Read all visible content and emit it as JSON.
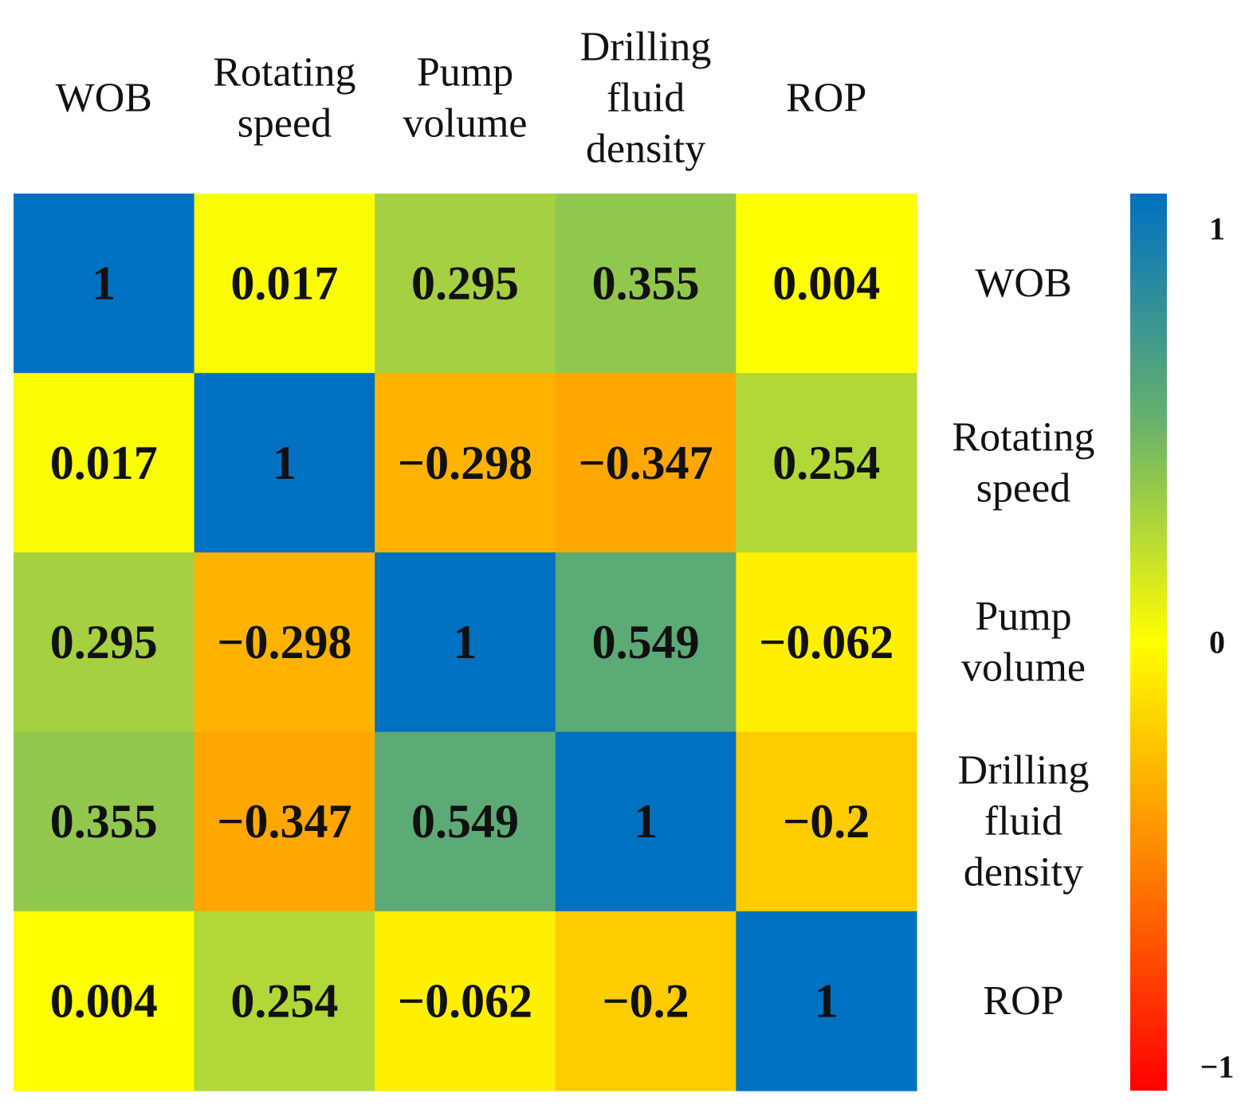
{
  "chart_data": {
    "type": "heatmap",
    "title": "",
    "x_labels": [
      [
        "WOB"
      ],
      [
        "Rotating",
        "speed"
      ],
      [
        "Pump",
        "volume"
      ],
      [
        "Drilling",
        "fluid",
        "density"
      ],
      [
        "ROP"
      ]
    ],
    "y_labels": [
      [
        "WOB"
      ],
      [
        "Rotating",
        "speed"
      ],
      [
        "Pump",
        "volume"
      ],
      [
        "Drilling",
        "fluid",
        "density"
      ],
      [
        "ROP"
      ]
    ],
    "values": [
      [
        1,
        0.017,
        0.295,
        0.355,
        0.004
      ],
      [
        0.017,
        1,
        -0.298,
        -0.347,
        0.254
      ],
      [
        0.295,
        -0.298,
        1,
        0.549,
        -0.062
      ],
      [
        0.355,
        -0.347,
        0.549,
        1,
        -0.2
      ],
      [
        0.004,
        0.254,
        -0.062,
        -0.2,
        1
      ]
    ],
    "value_labels": [
      [
        "1",
        "0.017",
        "0.295",
        "0.355",
        "0.004"
      ],
      [
        "0.017",
        "1",
        "−0.298",
        "−0.347",
        "0.254"
      ],
      [
        "0.295",
        "−0.298",
        "1",
        "0.549",
        "−0.062"
      ],
      [
        "0.355",
        "−0.347",
        "0.549",
        "1",
        "−0.2"
      ],
      [
        "0.004",
        "0.254",
        "−0.062",
        "−0.2",
        "1"
      ]
    ],
    "colorbar": {
      "range": [
        -1,
        1
      ],
      "ticks": [
        {
          "value": 1,
          "label": "1"
        },
        {
          "value": 0,
          "label": "0"
        },
        {
          "value": -1,
          "label": "−1"
        }
      ],
      "stops": [
        {
          "value": -1,
          "color": "#ff0000"
        },
        {
          "value": -0.5,
          "color": "#ff8000"
        },
        {
          "value": 0,
          "color": "#ffff00"
        },
        {
          "value": 0.5,
          "color": "#66b06e"
        },
        {
          "value": 1,
          "color": "#0070c0"
        }
      ]
    },
    "legend": "right"
  }
}
